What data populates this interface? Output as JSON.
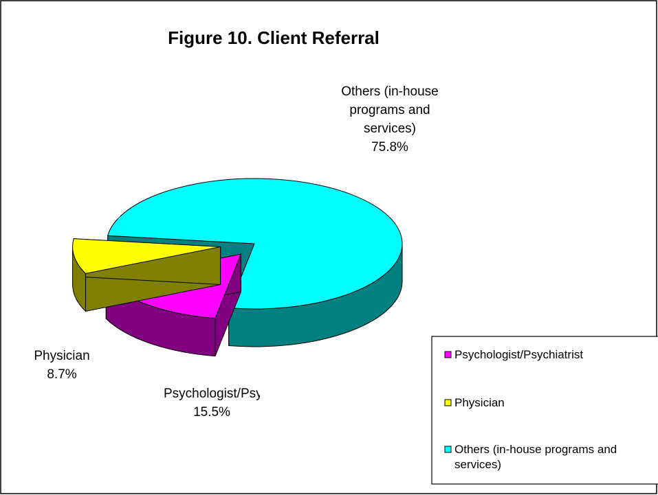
{
  "chart_data": {
    "type": "pie",
    "title": "Figure 10. Client Referral",
    "categories": [
      "Psychologist/Psychiatrist",
      "Physician",
      "Others (in-house programs and services)"
    ],
    "values": [
      15.5,
      8.7,
      75.8
    ],
    "value_labels": [
      "15.5%",
      "8.7%",
      "75.8%"
    ],
    "colors": [
      "#ff00ff",
      "#ffff00",
      "#00ffff"
    ],
    "legend": "bottom-right"
  }
}
